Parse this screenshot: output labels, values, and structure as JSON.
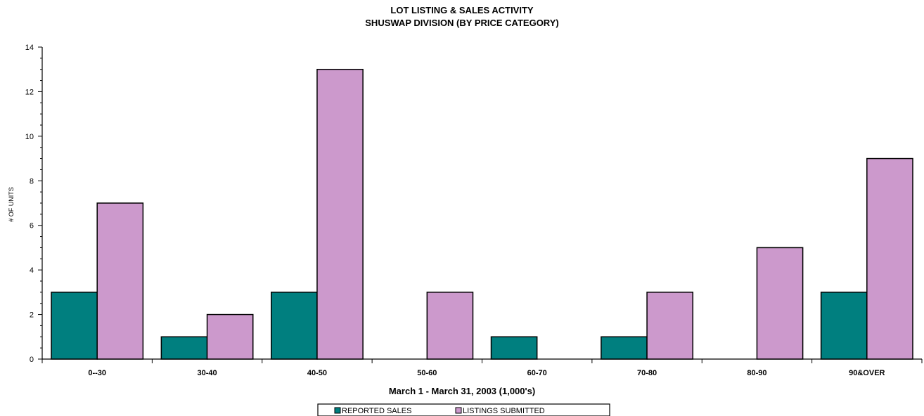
{
  "chart_data": {
    "type": "bar",
    "title": "LOT LISTING & SALES ACTIVITY",
    "subtitle": "SHUSWAP DIVISION (BY PRICE CATEGORY)",
    "xlabel": "March 1 - March 31, 2003 (1,000's)",
    "ylabel": "# OF UNITS",
    "ylim": [
      0,
      14
    ],
    "yticks": [
      0,
      2,
      4,
      6,
      8,
      10,
      12,
      14
    ],
    "categories": [
      "0--30",
      "30-40",
      "40-50",
      "50-60",
      "60-70",
      "70-80",
      "80-90",
      "90&OVER"
    ],
    "series": [
      {
        "name": "REPORTED SALES",
        "color": "#007f7f",
        "values": [
          3,
          1,
          3,
          0,
          1,
          1,
          0,
          3
        ]
      },
      {
        "name": "LISTINGS SUBMITTED",
        "color": "#cc99cc",
        "values": [
          7,
          2,
          13,
          3,
          0,
          3,
          5,
          9
        ]
      }
    ],
    "legend_position": "bottom-center",
    "grid": false
  }
}
